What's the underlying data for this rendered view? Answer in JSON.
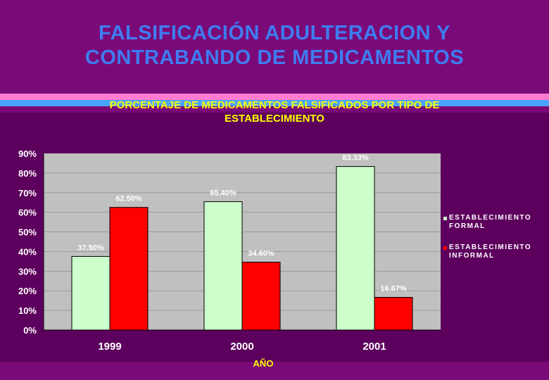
{
  "slide": {
    "title_line1": "FALSIFICACIÓN ADULTERACION Y",
    "title_line2": "CONTRABANDO DE MEDICAMENTOS"
  },
  "colors": {
    "background": "#7a0a78",
    "title": "#3f7cf0",
    "chart_title": "#ffff00",
    "formal": "#ccffcc",
    "informal": "#ff0000",
    "plot_area": "#c0c0c0"
  },
  "chart_data": {
    "type": "bar",
    "title": "PORCENTAJE DE MEDICAMENTOS FALSIFICADOS POR TIPO DE ESTABLECIMIENTO",
    "title_line1": "PORCENTAJE DE MEDICAMENTOS FALSIFICADOS POR TIPO DE",
    "title_line2": "ESTABLECIMIENTO",
    "xlabel": "AÑO",
    "ylabel": "",
    "categories": [
      "1999",
      "2000",
      "2001"
    ],
    "series": [
      {
        "name": "ESTABLECIMIENTO FORMAL",
        "name_line1": "ESTABLECIMIENTO",
        "name_line2": "FORMAL",
        "values": [
          37.5,
          65.4,
          83.33
        ],
        "labels": [
          "37.50%",
          "65.40%",
          "83.33%"
        ],
        "color": "#ccffcc"
      },
      {
        "name": "ESTABLECIMIENTO INFORMAL",
        "name_line1": "ESTABLECIMIENTO",
        "name_line2": "INFORMAL",
        "values": [
          62.5,
          34.6,
          16.67
        ],
        "labels": [
          "62.50%",
          "34.60%",
          "16.67%"
        ],
        "color": "#ff0000"
      }
    ],
    "ylim": [
      0,
      90
    ],
    "yticks": [
      "0%",
      "10%",
      "20%",
      "30%",
      "40%",
      "50%",
      "60%",
      "70%",
      "80%",
      "90%"
    ],
    "grid": true,
    "legend_position": "right"
  }
}
